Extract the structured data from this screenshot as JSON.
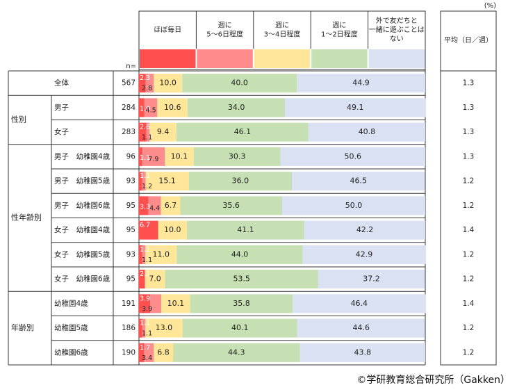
{
  "percent_unit": "(%)",
  "n_label": "n=",
  "avg_header": "平均（日／週）",
  "copyright": "©学研教育総合研究所（Gakken）",
  "colors": [
    "#ff5050",
    "#ff8c8c",
    "#ffe699",
    "#c6e0b4",
    "#d9e1f2"
  ],
  "chart_data": {
    "type": "bar",
    "stacked": true,
    "orientation": "horizontal",
    "xlim": [
      0,
      100
    ],
    "legend_position": "top",
    "series": [
      {
        "name": "ほぼ毎日",
        "values": [
          2.3,
          1.9,
          2.6,
          1.1,
          1.1,
          3.3,
          6.7,
          1.1,
          2.1,
          3.9,
          1.1,
          1.7
        ]
      },
      {
        "name": "週に\n5～6日程度",
        "values": [
          2.8,
          4.5,
          1.1,
          7.9,
          1.2,
          4.4,
          0.0,
          1.1,
          0.0,
          3.9,
          1.1,
          3.4
        ]
      },
      {
        "name": "週に\n3～4日程度",
        "values": [
          10.0,
          10.6,
          9.4,
          10.1,
          15.1,
          6.7,
          10.0,
          11.0,
          7.0,
          10.1,
          13.0,
          6.8
        ]
      },
      {
        "name": "週に\n1～2日程度",
        "values": [
          40.0,
          34.0,
          46.1,
          30.3,
          36.0,
          35.6,
          41.1,
          44.0,
          53.5,
          35.8,
          40.1,
          44.3
        ]
      },
      {
        "name": "外で友だちと\n一緒に遊ぶことは\nない",
        "values": [
          44.9,
          49.1,
          40.8,
          50.6,
          46.5,
          50.0,
          42.2,
          42.9,
          37.2,
          46.4,
          44.6,
          43.8
        ]
      }
    ],
    "value_labels": [
      [
        "2.3",
        "2.8",
        "10.0",
        "40.0",
        "44.9"
      ],
      [
        "1.9",
        "4.5",
        "10.6",
        "34.0",
        "49.1"
      ],
      [
        "2.6",
        "1.1",
        "9.4",
        "46.1",
        "40.8"
      ],
      [
        "1.1",
        "7.9",
        "10.1",
        "30.3",
        "50.6"
      ],
      [
        "1.1",
        "1.2",
        "15.1",
        "36.0",
        "46.5"
      ],
      [
        "3.3",
        "4.4",
        "6.7",
        "35.6",
        "50.0"
      ],
      [
        "6.7",
        "",
        "10.0",
        "41.1",
        "42.2"
      ],
      [
        "1.1",
        "1.1",
        "11.0",
        "44.0",
        "42.9"
      ],
      [
        "2.1",
        "",
        "7.0",
        "53.5",
        "37.2"
      ],
      [
        "3.9",
        "3.9",
        "10.1",
        "35.8",
        "46.4"
      ],
      [
        "1.1",
        "1.1",
        "13.0",
        "40.1",
        "44.6"
      ],
      [
        "1.7",
        "3.4",
        "6.8",
        "44.3",
        "43.8"
      ]
    ],
    "groups": [
      {
        "label": "",
        "rows": [
          0
        ]
      },
      {
        "label": "性別",
        "rows": [
          1,
          2
        ]
      },
      {
        "label": "性年齢別",
        "rows": [
          3,
          4,
          5,
          6,
          7,
          8
        ]
      },
      {
        "label": "年齢別",
        "rows": [
          9,
          10,
          11
        ]
      }
    ],
    "rows": [
      {
        "label": "全体",
        "n": 567,
        "avg": "1.3"
      },
      {
        "label": "男子",
        "n": 284,
        "avg": "1.3"
      },
      {
        "label": "女子",
        "n": 283,
        "avg": "1.3"
      },
      {
        "label": "男子　幼稚園4歳",
        "n": 96,
        "avg": "1.3"
      },
      {
        "label": "男子　幼稚園5歳",
        "n": 93,
        "avg": "1.2"
      },
      {
        "label": "男子　幼稚園6歳",
        "n": 95,
        "avg": "1.2"
      },
      {
        "label": "女子　幼稚園4歳",
        "n": 95,
        "avg": "1.4"
      },
      {
        "label": "女子　幼稚園5歳",
        "n": 93,
        "avg": "1.2"
      },
      {
        "label": "女子　幼稚園6歳",
        "n": 95,
        "avg": "1.2"
      },
      {
        "label": "幼稚園4歳",
        "n": 191,
        "avg": "1.4"
      },
      {
        "label": "幼稚園5歳",
        "n": 186,
        "avg": "1.2"
      },
      {
        "label": "幼稚園6歳",
        "n": 190,
        "avg": "1.2"
      }
    ]
  }
}
